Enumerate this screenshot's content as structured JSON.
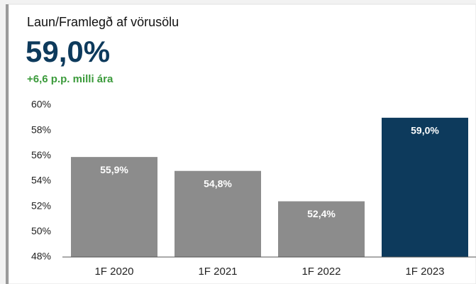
{
  "chart_data": {
    "type": "bar",
    "title": "Laun/Framlegð af vörusölu",
    "kpi": "59,0%",
    "subtitle": "+6,6 p.p. milli ára",
    "categories": [
      "1F 2020",
      "1F 2021",
      "1F 2022",
      "1F 2023"
    ],
    "values": [
      55.9,
      54.8,
      52.4,
      59.0
    ],
    "value_labels": [
      "55,9%",
      "54,8%",
      "52,4%",
      "59,0%"
    ],
    "colors": [
      "#8c8c8c",
      "#8c8c8c",
      "#8c8c8c",
      "#0d3a5c"
    ],
    "ylim": [
      48,
      60
    ],
    "yticks": [
      {
        "value": 48,
        "label": "48%"
      },
      {
        "value": 50,
        "label": "50%"
      },
      {
        "value": 52,
        "label": "52%"
      },
      {
        "value": 54,
        "label": "54%"
      },
      {
        "value": 56,
        "label": "56%"
      },
      {
        "value": 58,
        "label": "58%"
      },
      {
        "value": 60,
        "label": "60%"
      }
    ],
    "grid": false
  }
}
